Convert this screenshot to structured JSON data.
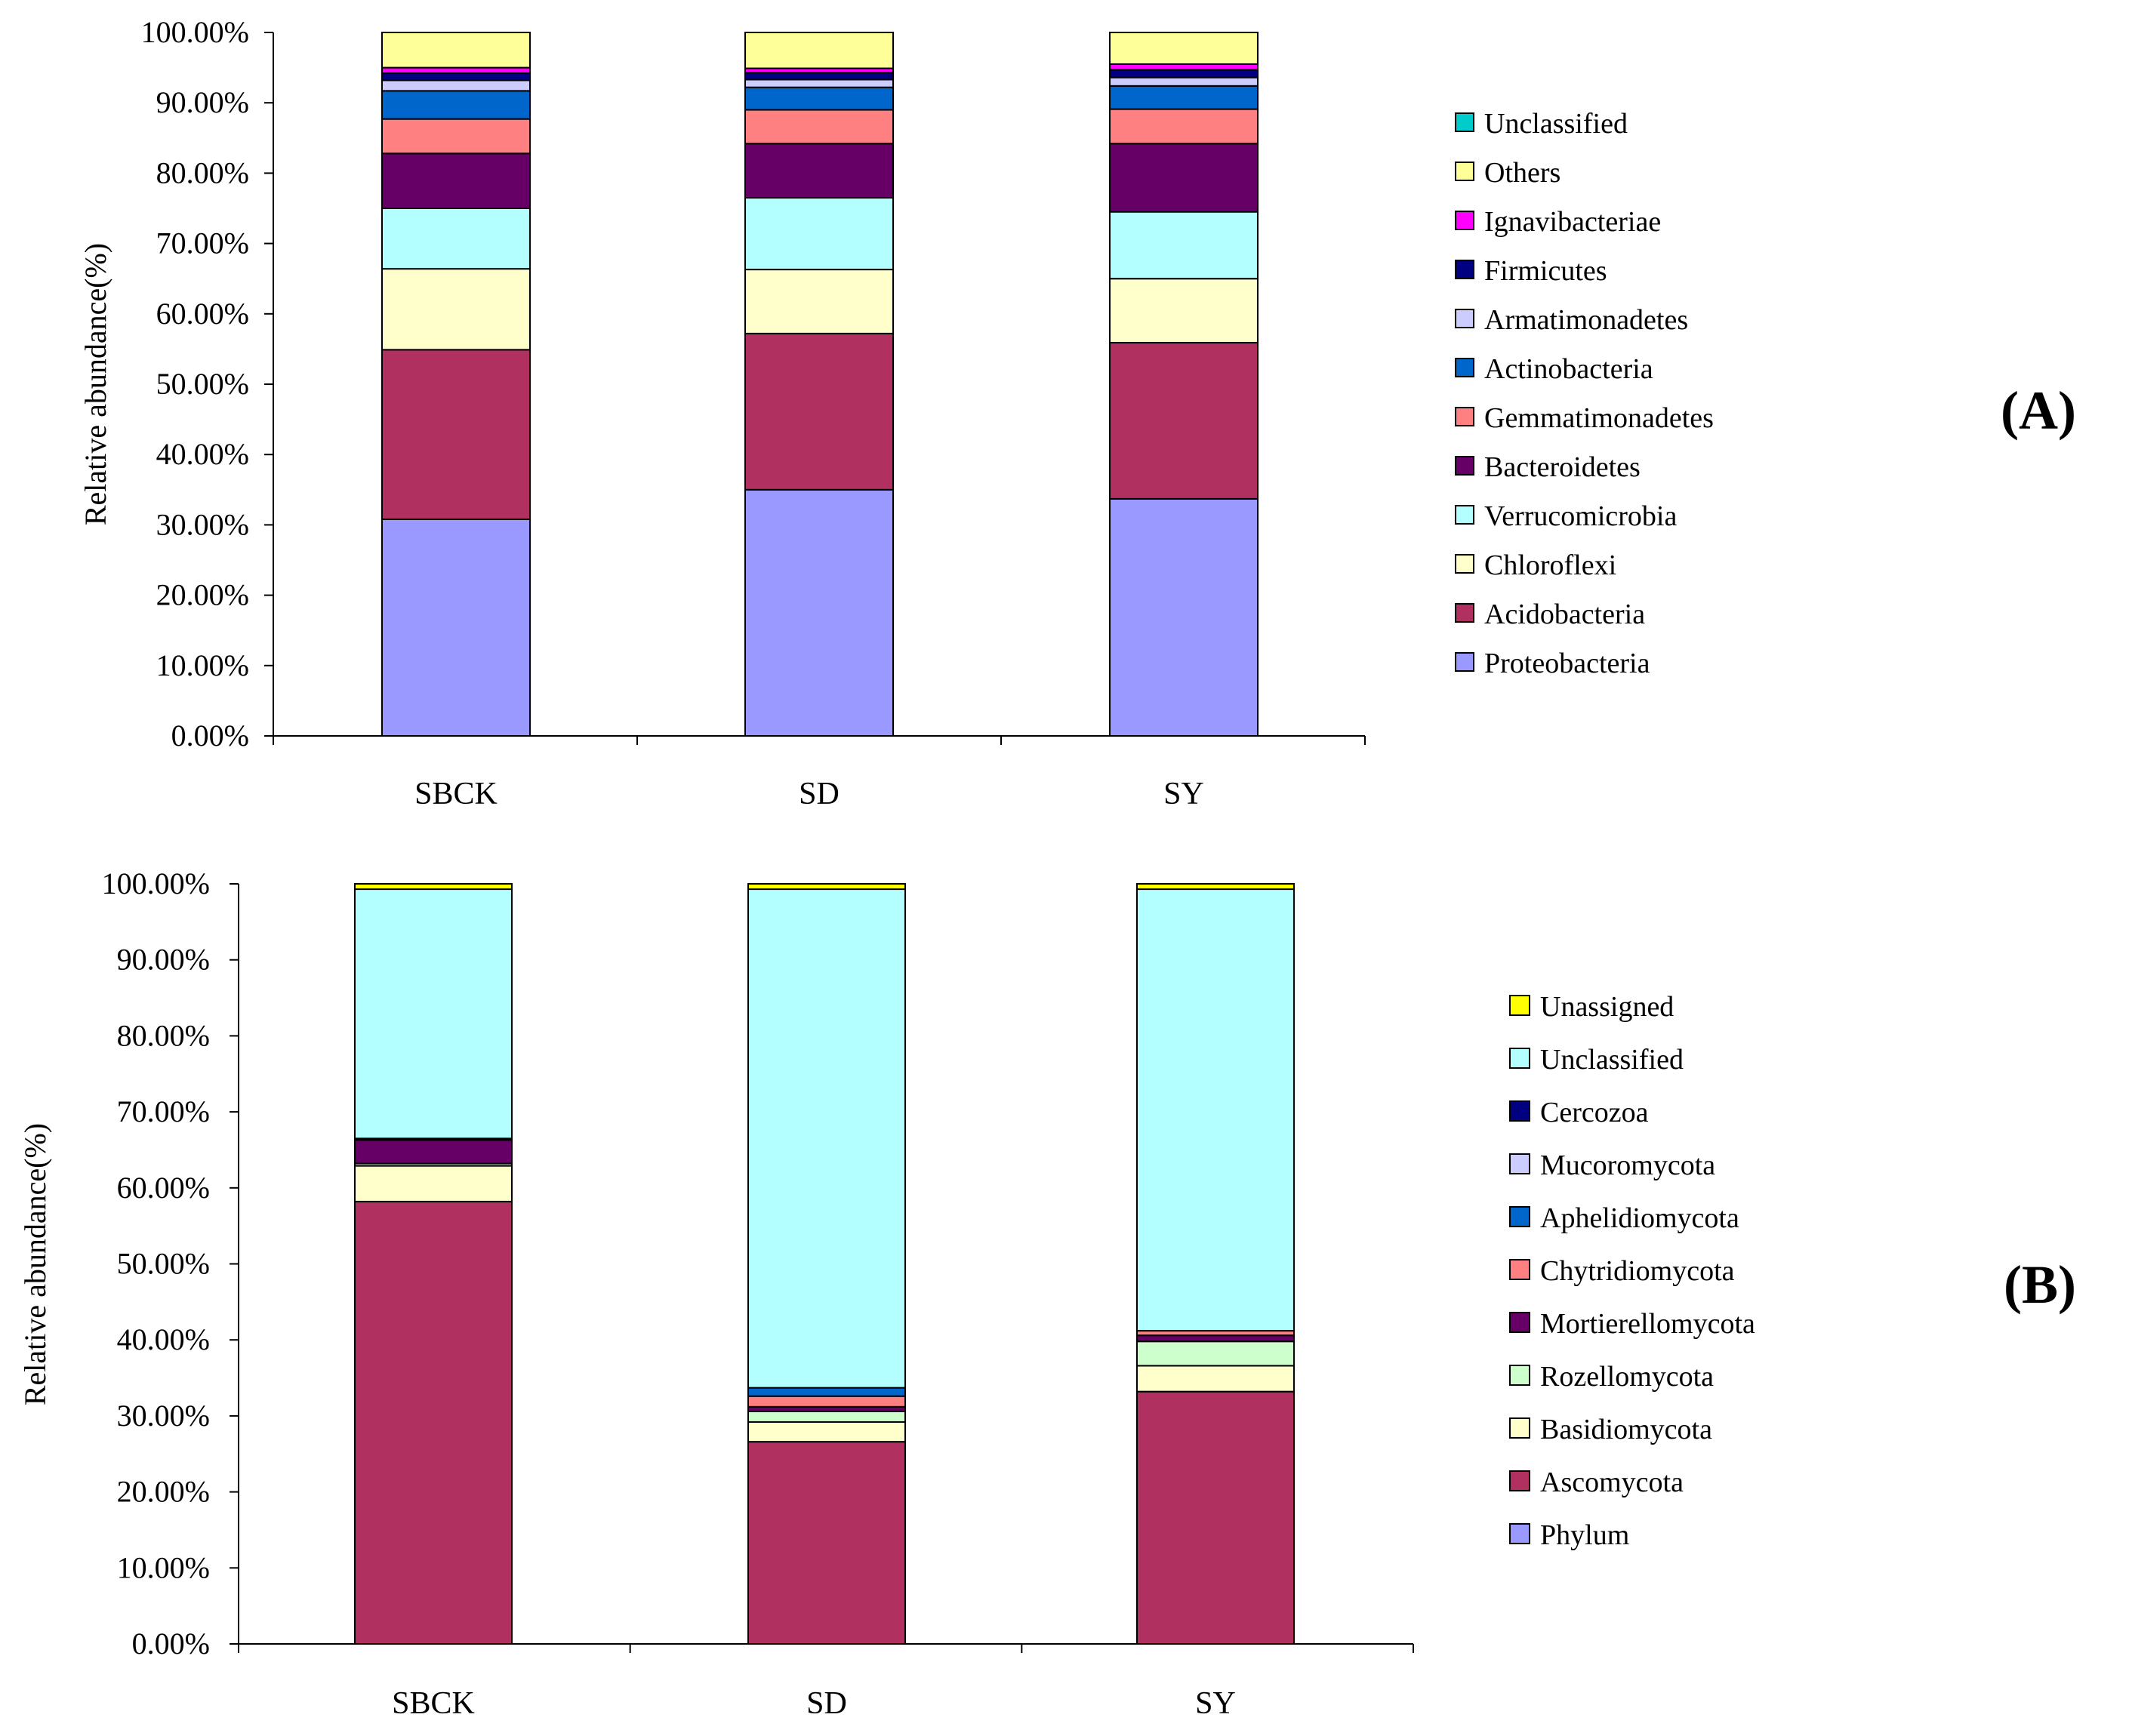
{
  "chart_data": [
    {
      "id": "A",
      "type": "bar",
      "stacked": true,
      "panel_label": "(A)",
      "ylabel": "Relative abundance(%)",
      "xlabel": "",
      "ylim": [
        0,
        100
      ],
      "yticks": [
        "0.00%",
        "10.00%",
        "20.00%",
        "30.00%",
        "40.00%",
        "50.00%",
        "60.00%",
        "70.00%",
        "80.00%",
        "90.00%",
        "100.00%"
      ],
      "categories": [
        "SBCK",
        "SD",
        "SY"
      ],
      "legend_position": "right",
      "series": [
        {
          "name": "Proteobacteria",
          "color": "#9999FF",
          "values": [
            30.8,
            35.0,
            33.7
          ]
        },
        {
          "name": "Acidobacteria",
          "color": "#B03060",
          "values": [
            24.1,
            22.2,
            22.2
          ]
        },
        {
          "name": "Chloroflexi",
          "color": "#FFFFCC",
          "values": [
            11.5,
            9.1,
            9.1
          ]
        },
        {
          "name": "Verrucomicrobia",
          "color": "#B3FFFF",
          "values": [
            8.6,
            10.2,
            9.5
          ]
        },
        {
          "name": "Bacteroidetes",
          "color": "#660066",
          "values": [
            7.8,
            7.7,
            9.7
          ]
        },
        {
          "name": "Gemmatimonadetes",
          "color": "#FF8080",
          "values": [
            4.9,
            4.8,
            4.9
          ]
        },
        {
          "name": "Actinobacteria",
          "color": "#0066CC",
          "values": [
            4.0,
            3.2,
            3.3
          ]
        },
        {
          "name": "Armatimonadetes",
          "color": "#CCCCFF",
          "values": [
            1.5,
            1.1,
            1.2
          ]
        },
        {
          "name": "Firmicutes",
          "color": "#000080",
          "values": [
            1.0,
            1.0,
            1.1
          ]
        },
        {
          "name": "Ignavibacteriae",
          "color": "#FF00FF",
          "values": [
            0.8,
            0.6,
            0.8
          ]
        },
        {
          "name": "Others",
          "color": "#FFFF99",
          "values": [
            5.0,
            5.1,
            4.5
          ]
        },
        {
          "name": "Unclassified",
          "color": "#00CCCC",
          "values": [
            0.0,
            0.0,
            0.0
          ]
        }
      ]
    },
    {
      "id": "B",
      "type": "bar",
      "stacked": true,
      "panel_label": "(B)",
      "ylabel": "Relative abundance(%)",
      "xlabel": "",
      "ylim": [
        0,
        100
      ],
      "yticks": [
        "0.00%",
        "10.00%",
        "20.00%",
        "30.00%",
        "40.00%",
        "50.00%",
        "60.00%",
        "70.00%",
        "80.00%",
        "90.00%",
        "100.00%"
      ],
      "categories": [
        "SBCK",
        "SD",
        "SY"
      ],
      "legend_position": "right",
      "series": [
        {
          "name": "Phylum",
          "color": "#9999FF",
          "values": [
            0.0,
            0.0,
            0.0
          ]
        },
        {
          "name": "Ascomycota",
          "color": "#B03060",
          "values": [
            58.2,
            26.6,
            33.2
          ]
        },
        {
          "name": "Basidiomycota",
          "color": "#FFFFCC",
          "values": [
            4.7,
            2.6,
            3.4
          ]
        },
        {
          "name": "Rozellomycota",
          "color": "#CCFFCC",
          "values": [
            0.3,
            1.4,
            3.2
          ]
        },
        {
          "name": "Mortierellomycota",
          "color": "#660066",
          "values": [
            3.1,
            0.6,
            0.8
          ]
        },
        {
          "name": "Chytridiomycota",
          "color": "#FF8080",
          "values": [
            0.2,
            1.4,
            0.6
          ]
        },
        {
          "name": "Aphelidiomycota",
          "color": "#0066CC",
          "values": [
            0.0,
            1.1,
            0.0
          ]
        },
        {
          "name": "Mucoromycota",
          "color": "#CCCCFF",
          "values": [
            0.0,
            0.0,
            0.0
          ]
        },
        {
          "name": "Cercozoa",
          "color": "#000080",
          "values": [
            0.0,
            0.0,
            0.0
          ]
        },
        {
          "name": "Unclassified",
          "color": "#B3FFFF",
          "values": [
            32.8,
            65.6,
            58.1
          ]
        },
        {
          "name": "Unassigned",
          "color": "#FFFF00",
          "values": [
            0.7,
            0.7,
            0.7
          ]
        }
      ]
    }
  ]
}
